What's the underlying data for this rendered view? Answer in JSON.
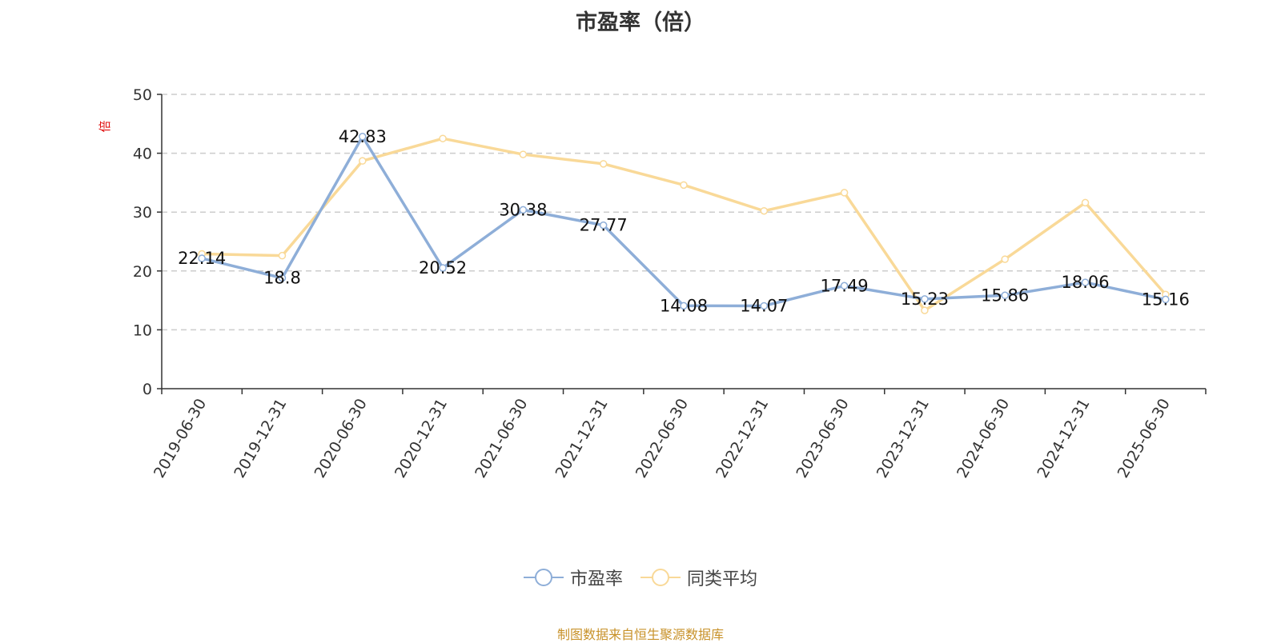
{
  "chart_data": {
    "type": "line",
    "title": "市盈率（倍）",
    "unit_label": "倍",
    "categories": [
      "2019-06-30",
      "2019-12-31",
      "2020-06-30",
      "2020-12-31",
      "2021-06-30",
      "2021-12-31",
      "2022-06-30",
      "2022-12-31",
      "2023-06-30",
      "2023-12-31",
      "2024-06-30",
      "2024-12-31",
      "2025-06-30"
    ],
    "ylim": [
      0,
      50
    ],
    "yticks": [
      0,
      10,
      20,
      30,
      40,
      50
    ],
    "grid": true,
    "legend_position": "bottom-center",
    "series": [
      {
        "name": "市盈率",
        "color": "#8eaed8",
        "show_labels": true,
        "values": [
          22.14,
          18.8,
          42.83,
          20.52,
          30.38,
          27.77,
          14.08,
          14.07,
          17.49,
          15.23,
          15.86,
          18.06,
          15.16
        ],
        "value_labels": [
          "22.14",
          "18.8",
          "42.83",
          "20.52",
          "30.38",
          "27.77",
          "14.08",
          "14.07",
          "17.49",
          "15.23",
          "15.86",
          "18.06",
          "15.16"
        ]
      },
      {
        "name": "同类平均",
        "color": "#f9d998",
        "show_labels": false,
        "values": [
          22.9,
          22.6,
          38.7,
          42.5,
          39.8,
          38.2,
          34.6,
          30.2,
          33.3,
          13.3,
          22.0,
          31.6,
          16.0
        ]
      }
    ]
  },
  "legend": {
    "items": [
      {
        "label": "市盈率",
        "color": "#8eaed8"
      },
      {
        "label": "同类平均",
        "color": "#f9d998"
      }
    ]
  },
  "source_note": "制图数据来自恒生聚源数据库"
}
